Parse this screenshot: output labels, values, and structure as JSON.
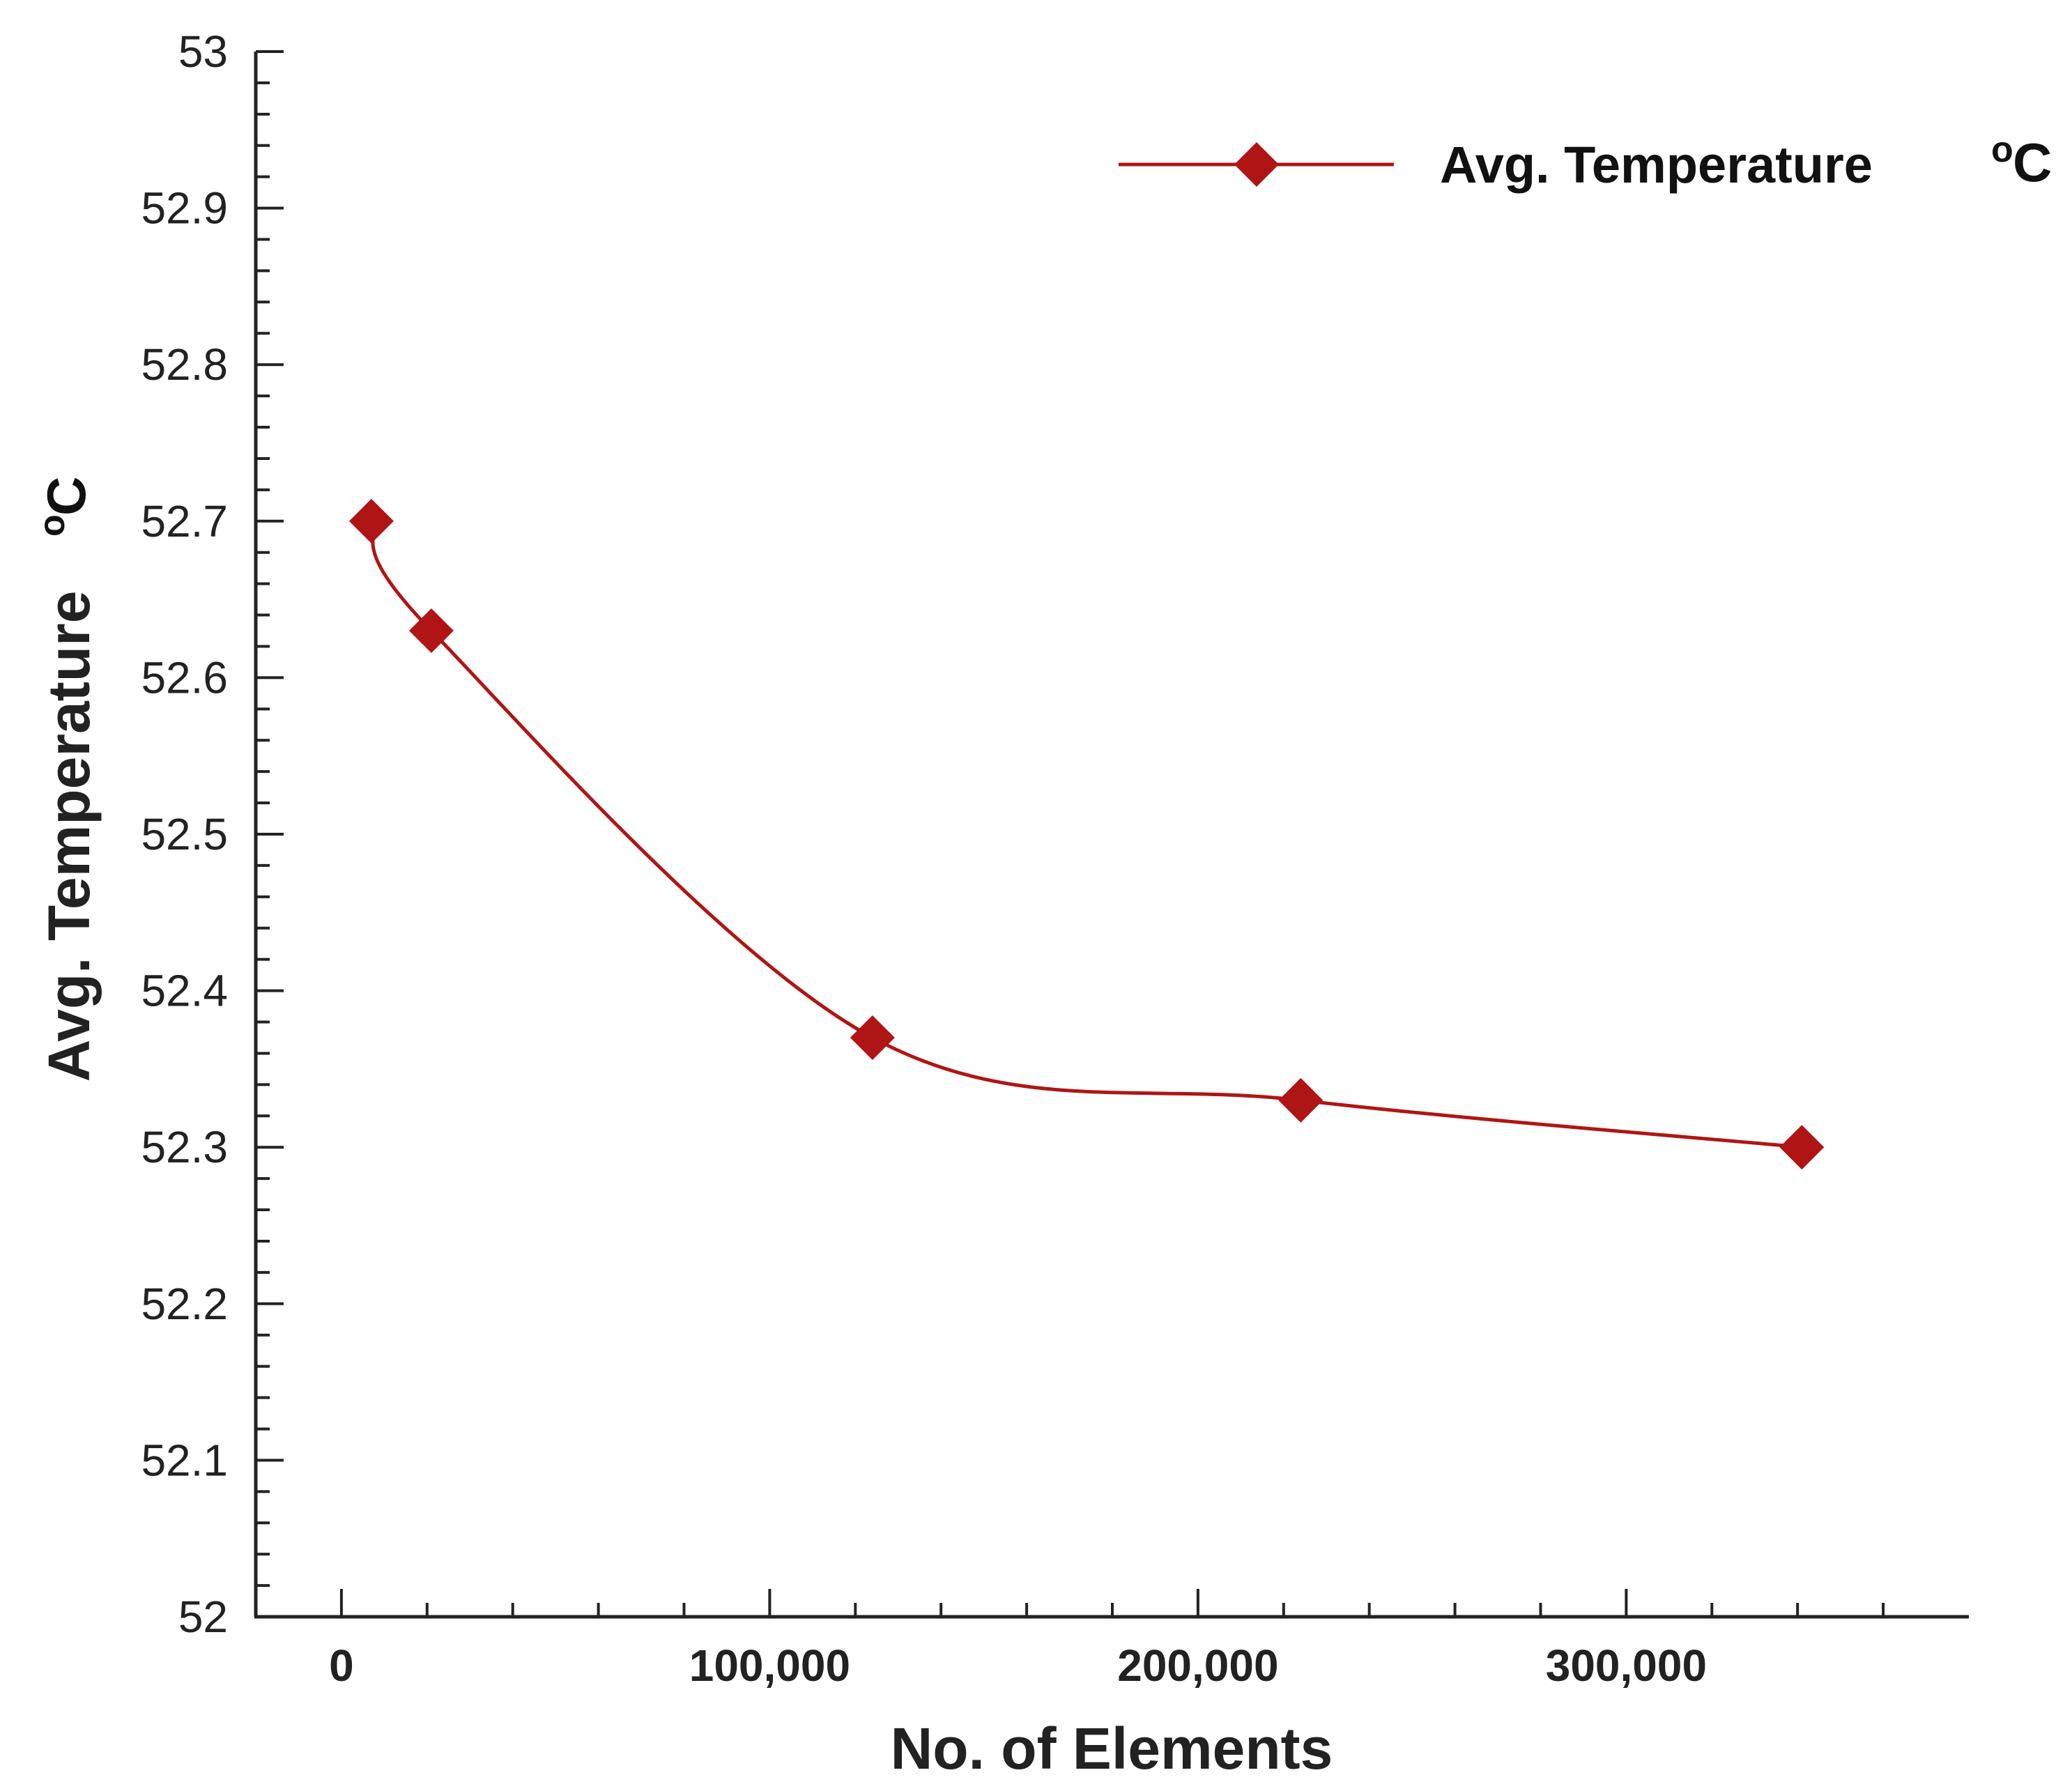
{
  "chart_data": {
    "type": "line",
    "title": "",
    "xlabel": "No. of Elements",
    "ylabel": "Avg. Temperature",
    "ylabel_unit": {
      "superscript": "o",
      "unit": "C"
    },
    "xlim": [
      -20000,
      380000
    ],
    "ylim": [
      52,
      53
    ],
    "grid": false,
    "smooth": true,
    "legend_position": "top-right",
    "y_ticks": [
      "52",
      "52.1",
      "52.2",
      "52.3",
      "52.4",
      "52.5",
      "52.6",
      "52.7",
      "52.8",
      "52.9",
      "53"
    ],
    "x_ticks": [
      {
        "value": 0,
        "label": "0"
      },
      {
        "value": 100000,
        "label": "100,000"
      },
      {
        "value": 200000,
        "label": "200,000"
      },
      {
        "value": 300000,
        "label": "300,000"
      }
    ],
    "series": [
      {
        "name": "Avg. Temperature",
        "unit_superscript": "o",
        "unit": "C",
        "color": "#b01515",
        "marker": "diamond",
        "x": [
          7000,
          21000,
          124000,
          224000,
          341000
        ],
        "y": [
          52.7,
          52.63,
          52.37,
          52.33,
          52.3
        ]
      }
    ]
  }
}
